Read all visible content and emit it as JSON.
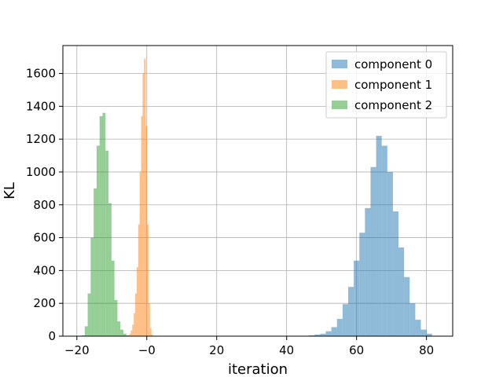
{
  "chart_data": {
    "type": "bar",
    "xlabel": "iteration",
    "ylabel": "KL",
    "xlim": [
      -24,
      87.5
    ],
    "ylim": [
      0,
      1770
    ],
    "x_ticks": [
      -20,
      0,
      20,
      40,
      60,
      80
    ],
    "x_tick_labels": [
      "−20",
      "−0",
      "20",
      "40",
      "60",
      "80"
    ],
    "y_ticks": [
      0,
      200,
      400,
      600,
      800,
      1000,
      1200,
      1400,
      1600
    ],
    "y_tick_labels": [
      "0",
      "200",
      "400",
      "600",
      "800",
      "1000",
      "1200",
      "1400",
      "1600"
    ],
    "grid": true,
    "legend_position": "top-right",
    "series": [
      {
        "name": "component 0",
        "color": "#1f77b4",
        "bin_width": 1.6,
        "bins_left": [
          46.4,
          48.0,
          49.6,
          51.2,
          52.8,
          54.4,
          56.0,
          57.6,
          59.2,
          60.8,
          62.4,
          64.0,
          65.6,
          67.2,
          68.8,
          70.4,
          72.0,
          73.6,
          75.2,
          76.8,
          78.4,
          80.0
        ],
        "counts": [
          5,
          10,
          15,
          30,
          55,
          105,
          195,
          300,
          460,
          630,
          780,
          1030,
          1220,
          1160,
          1000,
          760,
          540,
          360,
          200,
          100,
          40,
          15
        ]
      },
      {
        "name": "component 1",
        "color": "#ff7f0e",
        "bin_width": 0.42,
        "bins_left": [
          -5.4,
          -4.98,
          -4.56,
          -4.14,
          -3.72,
          -3.3,
          -2.88,
          -2.46,
          -2.04,
          -1.62,
          -1.2,
          -0.78,
          -0.36,
          0.06,
          0.48,
          0.9,
          1.32
        ],
        "counts": [
          5,
          15,
          35,
          70,
          140,
          260,
          420,
          680,
          1000,
          1340,
          1600,
          1690,
          1280,
          680,
          200,
          50,
          10
        ]
      },
      {
        "name": "component 2",
        "color": "#2ca02c",
        "bin_width": 0.85,
        "bins_left": [
          -18.6,
          -17.75,
          -16.9,
          -16.05,
          -15.2,
          -14.35,
          -13.5,
          -12.65,
          -11.8,
          -10.95,
          -10.1,
          -9.25,
          -8.4,
          -7.55,
          -6.7,
          -5.85
        ],
        "counts": [
          5,
          60,
          260,
          600,
          900,
          1160,
          1340,
          1360,
          1130,
          810,
          460,
          220,
          90,
          40,
          15,
          5
        ]
      }
    ]
  }
}
